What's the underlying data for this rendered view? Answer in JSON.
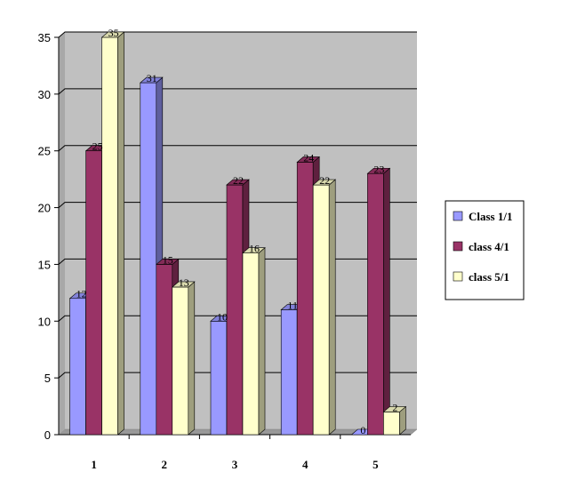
{
  "chart_data": {
    "type": "bar",
    "title": "",
    "xlabel": "",
    "ylabel": "",
    "categories": [
      "1",
      "2",
      "3",
      "4",
      "5"
    ],
    "series": [
      {
        "name": "Class 1/1",
        "values": [
          12,
          31,
          10,
          11,
          0
        ],
        "color": "#9999ff"
      },
      {
        "name": "class 4/1",
        "values": [
          25,
          15,
          22,
          24,
          23
        ],
        "color": "#993366"
      },
      {
        "name": "class 5/1",
        "values": [
          35,
          13,
          16,
          22,
          2
        ],
        "color": "#ffffcc"
      }
    ],
    "ylim": [
      0,
      35
    ],
    "yticks": [
      0,
      5,
      10,
      15,
      20,
      25,
      30,
      35
    ],
    "grid": true,
    "three_d": true,
    "plot_background": "#c0c0c0",
    "legend_position": "right"
  }
}
